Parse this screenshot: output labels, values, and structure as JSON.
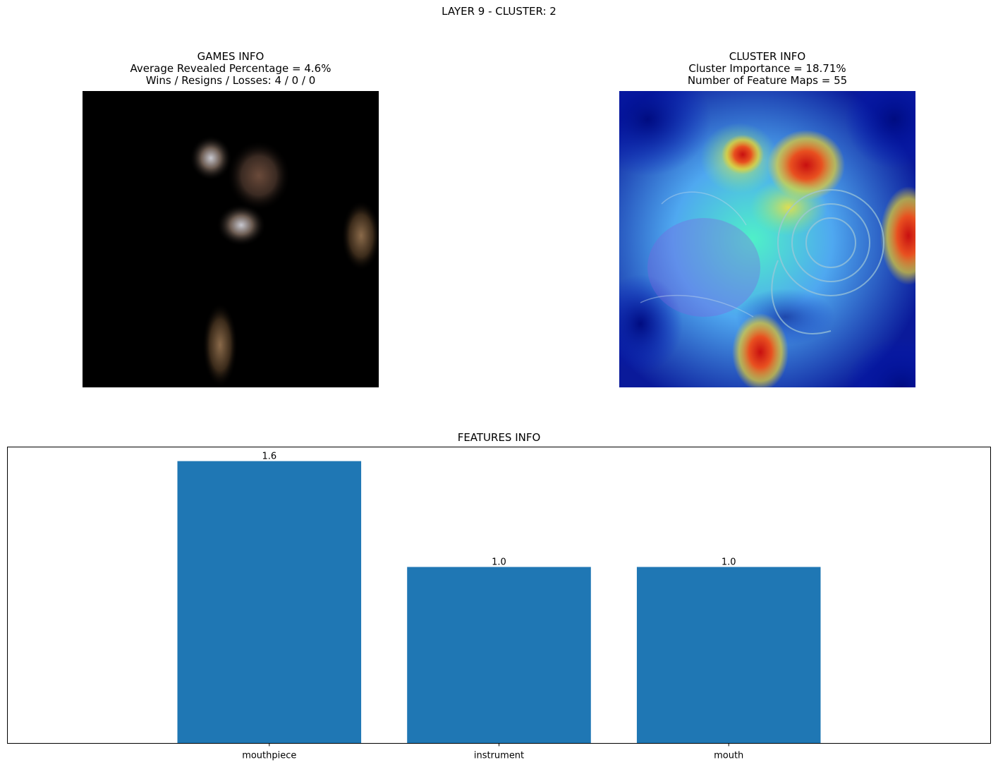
{
  "suptitle": "LAYER 9 - CLUSTER: 2",
  "games_info": {
    "title": "GAMES INFO",
    "line1": "Average Revealed Percentage = 4.6%",
    "line2": "Wins / Resigns / Losses: 4 / 0 / 0"
  },
  "cluster_info": {
    "title": "CLUSTER INFO",
    "line1": "Cluster Importance = 18.71%",
    "line2": "Number of Feature Maps = 55"
  },
  "chart_data": {
    "type": "bar",
    "title": "FEATURES INFO",
    "categories": [
      "mouthpiece",
      "instrument",
      "mouth"
    ],
    "values": [
      1.6,
      1.0,
      1.0
    ],
    "value_labels": [
      "1.6",
      "1.0",
      "1.0"
    ],
    "ylim": [
      0,
      1.68
    ],
    "bar_color": "#1f77b4",
    "yticks_visible": false,
    "grid": false
  }
}
